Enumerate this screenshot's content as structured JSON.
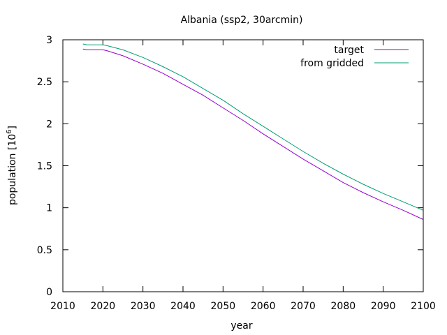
{
  "chart_data": {
    "type": "line",
    "title": "Albania (ssp2, 30arcmin)",
    "xlabel": "year",
    "ylabel_main": "population [10",
    "ylabel_exp": "6",
    "ylabel_close": "]",
    "xlim": [
      2010,
      2100
    ],
    "ylim": [
      0,
      3
    ],
    "xticks": [
      2010,
      2020,
      2030,
      2040,
      2050,
      2060,
      2070,
      2080,
      2090,
      2100
    ],
    "yticks": [
      0,
      0.5,
      1,
      1.5,
      2,
      2.5,
      3
    ],
    "ytick_labels": [
      "0",
      "0.5",
      "1",
      "1.5",
      "2",
      "2.5",
      "3"
    ],
    "legend_position": "top-right",
    "series": [
      {
        "name": "target",
        "color": "#9400d3",
        "x": [
          2015,
          2016,
          2020,
          2021,
          2025,
          2030,
          2035,
          2040,
          2045,
          2050,
          2055,
          2060,
          2065,
          2070,
          2075,
          2080,
          2085,
          2090,
          2095,
          2100
        ],
        "y": [
          2.89,
          2.88,
          2.88,
          2.87,
          2.81,
          2.71,
          2.6,
          2.47,
          2.34,
          2.19,
          2.04,
          1.88,
          1.73,
          1.58,
          1.44,
          1.3,
          1.18,
          1.07,
          0.97,
          0.86
        ]
      },
      {
        "name": "from gridded",
        "color": "#009e73",
        "x": [
          2015,
          2016,
          2020,
          2021,
          2025,
          2030,
          2035,
          2040,
          2045,
          2050,
          2055,
          2060,
          2065,
          2070,
          2075,
          2080,
          2085,
          2090,
          2095,
          2100
        ],
        "y": [
          2.95,
          2.94,
          2.94,
          2.93,
          2.88,
          2.79,
          2.68,
          2.56,
          2.42,
          2.28,
          2.12,
          1.97,
          1.82,
          1.67,
          1.53,
          1.4,
          1.28,
          1.17,
          1.07,
          0.97
        ]
      }
    ]
  }
}
